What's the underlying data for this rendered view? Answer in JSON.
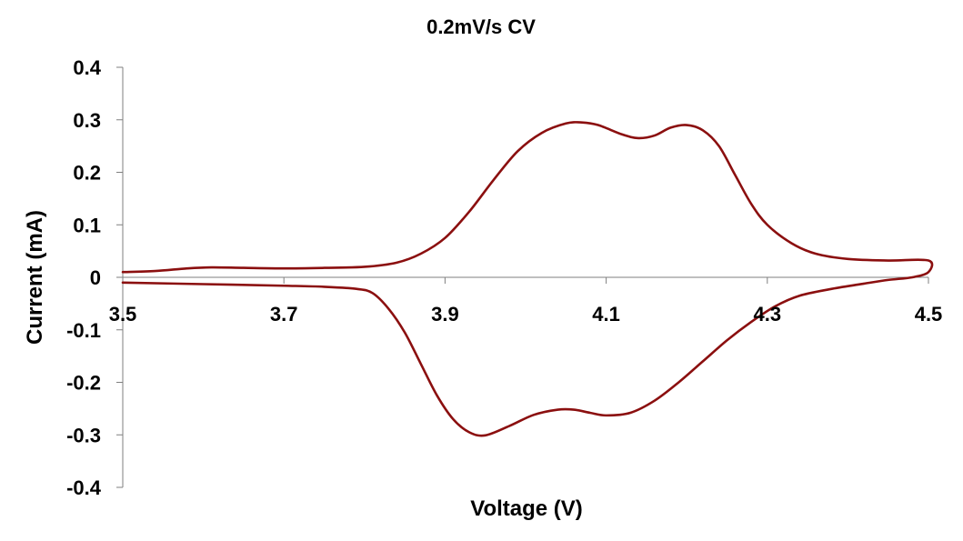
{
  "chart_data": {
    "type": "line",
    "title": "0.2mV/s CV",
    "xlabel": "Voltage (V)",
    "ylabel": "Current (mA)",
    "xlim": [
      3.5,
      4.5
    ],
    "ylim": [
      -0.4,
      0.4
    ],
    "x_ticks": [
      3.5,
      3.7,
      3.9,
      4.1,
      4.3,
      4.5
    ],
    "x_tick_labels": [
      "3.5",
      "3.7",
      "3.9",
      "4.1",
      "4.3",
      "4.5"
    ],
    "y_ticks": [
      0.4,
      0.3,
      0.2,
      0.1,
      0,
      -0.1,
      -0.2,
      -0.3,
      -0.4
    ],
    "y_tick_labels": [
      "0.4",
      "0.3",
      "0.2",
      "0.1",
      "0",
      "-0.1",
      "-0.2",
      "-0.3",
      "-0.4"
    ],
    "grid": false,
    "legend": "none",
    "series": [
      {
        "color": "#8b0f0f",
        "points": [
          [
            3.5,
            0.01
          ],
          [
            3.54,
            0.012
          ],
          [
            3.58,
            0.017
          ],
          [
            3.61,
            0.019
          ],
          [
            3.65,
            0.018
          ],
          [
            3.7,
            0.017
          ],
          [
            3.75,
            0.018
          ],
          [
            3.8,
            0.02
          ],
          [
            3.84,
            0.028
          ],
          [
            3.87,
            0.045
          ],
          [
            3.9,
            0.075
          ],
          [
            3.93,
            0.125
          ],
          [
            3.96,
            0.185
          ],
          [
            3.99,
            0.24
          ],
          [
            4.02,
            0.275
          ],
          [
            4.05,
            0.293
          ],
          [
            4.07,
            0.295
          ],
          [
            4.09,
            0.29
          ],
          [
            4.12,
            0.272
          ],
          [
            4.14,
            0.265
          ],
          [
            4.16,
            0.27
          ],
          [
            4.18,
            0.285
          ],
          [
            4.2,
            0.29
          ],
          [
            4.22,
            0.28
          ],
          [
            4.24,
            0.25
          ],
          [
            4.26,
            0.195
          ],
          [
            4.28,
            0.14
          ],
          [
            4.3,
            0.1
          ],
          [
            4.33,
            0.065
          ],
          [
            4.36,
            0.045
          ],
          [
            4.4,
            0.035
          ],
          [
            4.45,
            0.032
          ],
          [
            4.5,
            0.032
          ],
          [
            4.5,
            0.01
          ],
          [
            4.48,
            0.0
          ],
          [
            4.45,
            -0.005
          ],
          [
            4.42,
            -0.012
          ],
          [
            4.38,
            -0.022
          ],
          [
            4.34,
            -0.035
          ],
          [
            4.31,
            -0.055
          ],
          [
            4.28,
            -0.085
          ],
          [
            4.25,
            -0.12
          ],
          [
            4.22,
            -0.16
          ],
          [
            4.19,
            -0.2
          ],
          [
            4.16,
            -0.235
          ],
          [
            4.13,
            -0.258
          ],
          [
            4.1,
            -0.263
          ],
          [
            4.08,
            -0.258
          ],
          [
            4.06,
            -0.252
          ],
          [
            4.04,
            -0.252
          ],
          [
            4.01,
            -0.262
          ],
          [
            3.98,
            -0.283
          ],
          [
            3.95,
            -0.301
          ],
          [
            3.93,
            -0.295
          ],
          [
            3.91,
            -0.27
          ],
          [
            3.89,
            -0.225
          ],
          [
            3.87,
            -0.165
          ],
          [
            3.85,
            -0.105
          ],
          [
            3.83,
            -0.06
          ],
          [
            3.81,
            -0.03
          ],
          [
            3.79,
            -0.022
          ],
          [
            3.75,
            -0.018
          ],
          [
            3.7,
            -0.016
          ],
          [
            3.6,
            -0.013
          ],
          [
            3.5,
            -0.01
          ]
        ]
      }
    ]
  }
}
